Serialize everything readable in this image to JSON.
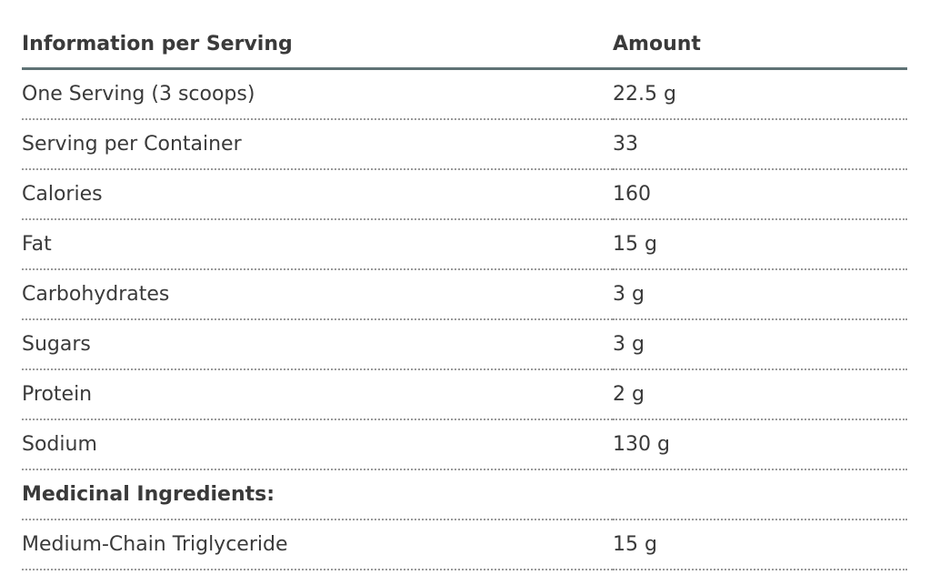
{
  "table": {
    "header": [
      "Information per Serving",
      "Amount"
    ],
    "rows": [
      [
        "One Serving (3 scoops)",
        "22.5 g"
      ],
      [
        "Serving per Container",
        "33"
      ],
      [
        "Calories",
        "160"
      ],
      [
        "Fat",
        "15 g"
      ],
      [
        "Carbohydrates",
        "3 g"
      ],
      [
        "Sugars",
        "3 g"
      ],
      [
        "Protein",
        "2 g"
      ],
      [
        "Sodium",
        "130 g"
      ],
      [
        "Medicinal Ingredients:"
      ],
      [
        "Medium-Chain Triglyceride",
        "15 g"
      ]
    ]
  }
}
